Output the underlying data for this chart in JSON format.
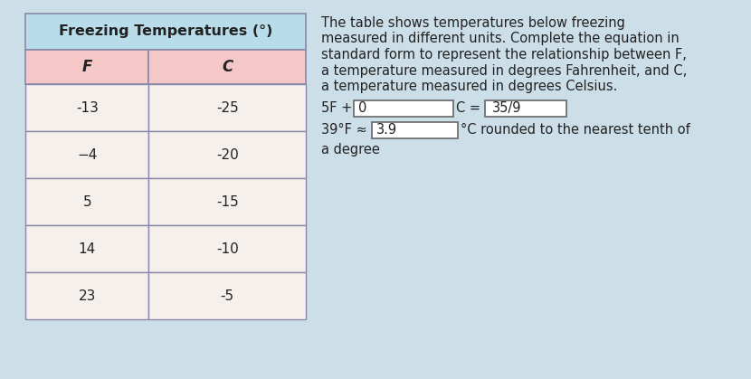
{
  "title": "Freezing Temperatures (°)",
  "col_headers": [
    "F",
    "C"
  ],
  "rows": [
    [
      "-13",
      "-25"
    ],
    [
      "−4",
      "-20"
    ],
    [
      "5",
      "-15"
    ],
    [
      "14",
      "-10"
    ],
    [
      "23",
      "-5"
    ]
  ],
  "title_bg": "#b8dcea",
  "header_bg": "#f5c8c8",
  "row_bg": "#f5f0ec",
  "border_color": "#8888aa",
  "text_color": "#222222",
  "right_text_lines": [
    "The table shows temperatures below freezing",
    "measured in different units. Complete the equation in",
    "standard form to represent the relationship between F,",
    "a temperature measured in degrees Fahrenheit, and C,",
    "a temperature measured in degrees Celsius."
  ],
  "eq_line1_prefix": "5F + ",
  "eq_line1_box1": "0",
  "eq_line1_mid": "C = ",
  "eq_line1_box2": "35/9",
  "eq_line2_prefix": "39°F ≈ ",
  "eq_line2_box": "3.9",
  "eq_line2_suffix": "°C rounded to the nearest tenth of",
  "eq_line3": "a degree",
  "bg_color": "#ccdfe8",
  "font_size_title": 11.5,
  "font_size_header": 12,
  "font_size_body": 11,
  "font_size_right": 10.5
}
